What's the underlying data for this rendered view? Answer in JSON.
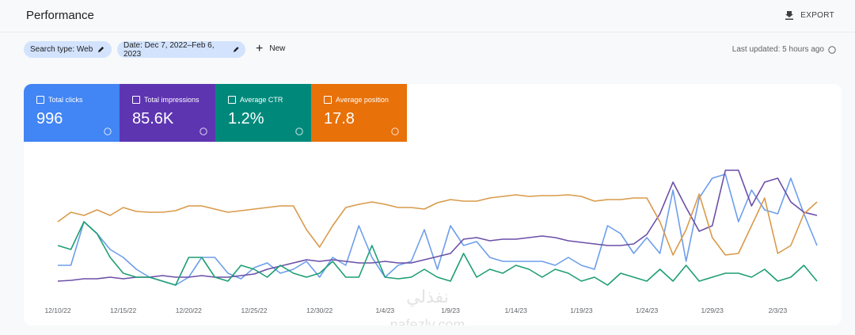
{
  "header": {
    "title": "Performance",
    "export": "EXPORT"
  },
  "filters": {
    "search_type": "Search type: Web",
    "date": "Date: Dec 7, 2022–Feb 6, 2023",
    "new": "New",
    "last_updated": "Last updated: 5 hours ago"
  },
  "watermark": {
    "arabic": "نفذلي",
    "site": "nafezly.com"
  },
  "chart_data": {
    "type": "line",
    "summary": [
      "996",
      "85.6K",
      "1.2%",
      "17.8"
    ],
    "categories": [
      "12/10/22",
      null,
      null,
      null,
      null,
      "12/15/22",
      null,
      null,
      null,
      null,
      "12/20/22",
      null,
      null,
      null,
      null,
      "12/25/22",
      null,
      null,
      null,
      null,
      "12/30/22",
      null,
      null,
      null,
      null,
      "1/4/23",
      null,
      null,
      null,
      null,
      "1/9/23",
      null,
      null,
      null,
      null,
      "1/14/23",
      null,
      null,
      null,
      null,
      "1/19/23",
      null,
      null,
      null,
      null,
      "1/24/23",
      null,
      null,
      null,
      null,
      "1/29/23",
      null,
      null,
      null,
      null,
      "2/3/23",
      null,
      null,
      null
    ],
    "ylim": [
      0,
      190
    ],
    "series": [
      {
        "name": "Total clicks",
        "color": "#4285f4",
        "line_color": "#6d9eeb",
        "values": [
          45,
          45,
          100,
          85,
          65,
          55,
          40,
          30,
          25,
          20,
          30,
          55,
          55,
          35,
          28,
          42,
          48,
          35,
          40,
          50,
          30,
          55,
          45,
          95,
          55,
          30,
          45,
          50,
          90,
          40,
          95,
          70,
          75,
          55,
          50,
          50,
          50,
          50,
          45,
          55,
          45,
          40,
          95,
          85,
          60,
          80,
          60,
          140,
          50,
          130,
          155,
          160,
          100,
          140,
          115,
          110,
          155,
          110,
          70
        ]
      },
      {
        "name": "Total impressions",
        "color": "#5e35b1",
        "line_color": "#6a4fa8",
        "values": [
          25,
          26,
          28,
          28,
          30,
          28,
          30,
          30,
          32,
          30,
          30,
          32,
          30,
          30,
          32,
          34,
          40,
          44,
          48,
          52,
          50,
          52,
          50,
          48,
          48,
          50,
          48,
          48,
          52,
          56,
          60,
          78,
          80,
          76,
          78,
          78,
          80,
          82,
          80,
          76,
          74,
          72,
          70,
          70,
          72,
          84,
          110,
          150,
          118,
          88,
          95,
          165,
          165,
          120,
          150,
          155,
          125,
          112,
          108
        ]
      },
      {
        "name": "Average CTR",
        "color": "#00897b",
        "line_color": "#1e9e74",
        "values": [
          70,
          65,
          100,
          85,
          55,
          35,
          30,
          30,
          25,
          20,
          55,
          55,
          30,
          25,
          45,
          40,
          30,
          45,
          35,
          30,
          35,
          50,
          30,
          30,
          70,
          30,
          28,
          30,
          40,
          30,
          25,
          60,
          30,
          40,
          35,
          45,
          40,
          30,
          40,
          35,
          25,
          30,
          20,
          35,
          30,
          25,
          40,
          25,
          45,
          25,
          30,
          35,
          35,
          30,
          40,
          25,
          30,
          45,
          25
        ]
      },
      {
        "name": "Average position",
        "color": "#e8710a",
        "line_color": "#d99a4a",
        "values": [
          100,
          112,
          108,
          115,
          108,
          118,
          113,
          112,
          112,
          114,
          120,
          120,
          116,
          112,
          114,
          116,
          118,
          120,
          120,
          90,
          68,
          95,
          118,
          122,
          125,
          122,
          118,
          118,
          116,
          124,
          128,
          126,
          126,
          130,
          132,
          134,
          132,
          133,
          133,
          134,
          132,
          126,
          128,
          128,
          130,
          130,
          100,
          58,
          90,
          135,
          80,
          58,
          60,
          95,
          130,
          60,
          70,
          110,
          125
        ]
      }
    ]
  }
}
